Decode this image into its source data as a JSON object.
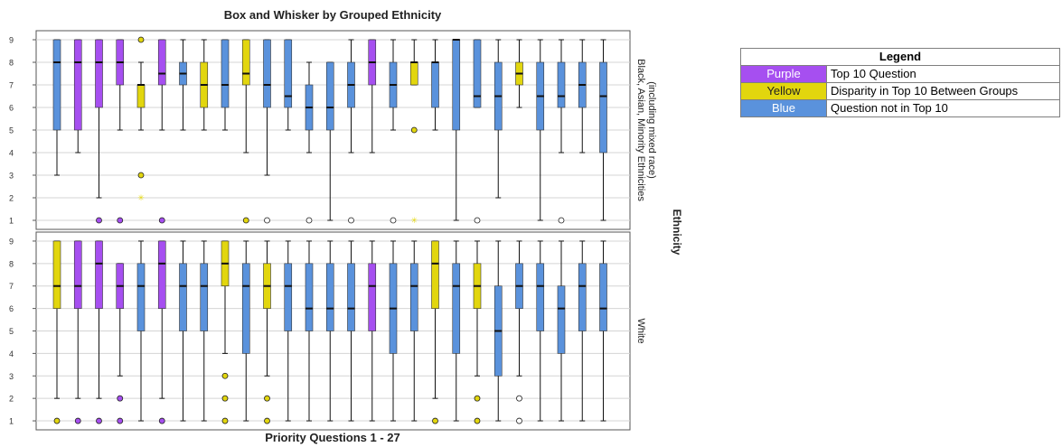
{
  "chart_data": {
    "type": "box",
    "title": "Box and Whisker by Grouped Ethnicity",
    "xlabel": "Priority Questions 1 - 27",
    "facet_label": "Ethnicity",
    "ylim": [
      0.6,
      9.4
    ],
    "yticks": [
      1,
      2,
      3,
      4,
      5,
      6,
      7,
      8,
      9
    ],
    "grid": true,
    "colors": {
      "purple": "#a64ff0",
      "yellow": "#e2d60e",
      "blue": "#5a92dc"
    },
    "panels": [
      {
        "group": "Black, Asian, Minority Ethnicities (including mixed race)",
        "group_lines": [
          "Black, Asian, Minority Ethnicities",
          "(including mixed race)"
        ],
        "boxes": [
          {
            "q": 1,
            "color": "blue",
            "min": 3,
            "q1": 5,
            "median": 8,
            "q3": 9,
            "max": 9,
            "outliers": []
          },
          {
            "q": 2,
            "color": "purple",
            "min": 4,
            "q1": 5,
            "median": 8,
            "q3": 9,
            "max": 9,
            "outliers": []
          },
          {
            "q": 3,
            "color": "purple",
            "min": 2,
            "q1": 6,
            "median": 8,
            "q3": 9,
            "max": 9,
            "outliers": [
              1
            ]
          },
          {
            "q": 4,
            "color": "purple",
            "min": 5,
            "q1": 7,
            "median": 8,
            "q3": 9,
            "max": 9,
            "outliers": [
              1
            ]
          },
          {
            "q": 5,
            "color": "yellow",
            "min": 5,
            "q1": 6,
            "median": 7,
            "q3": 7,
            "max": 8,
            "outliers": [
              9,
              3
            ],
            "extremes": [
              2
            ]
          },
          {
            "q": 6,
            "color": "purple",
            "min": 5,
            "q1": 7,
            "median": 7.5,
            "q3": 9,
            "max": 9,
            "outliers": [
              1
            ]
          },
          {
            "q": 7,
            "color": "blue",
            "min": 5,
            "q1": 7,
            "median": 7.5,
            "q3": 8,
            "max": 9,
            "outliers": []
          },
          {
            "q": 8,
            "color": "yellow",
            "min": 5,
            "q1": 6,
            "median": 7,
            "q3": 8,
            "max": 9,
            "outliers": []
          },
          {
            "q": 9,
            "color": "blue",
            "min": 5,
            "q1": 6,
            "median": 7,
            "q3": 9,
            "max": 9,
            "outliers": []
          },
          {
            "q": 10,
            "color": "yellow",
            "min": 4,
            "q1": 7,
            "median": 7.5,
            "q3": 9,
            "max": 9,
            "outliers": [
              1
            ]
          },
          {
            "q": 11,
            "color": "blue",
            "min": 3,
            "q1": 6,
            "median": 7,
            "q3": 9,
            "max": 9,
            "outliers": [
              1
            ]
          },
          {
            "q": 12,
            "color": "blue",
            "min": 5,
            "q1": 6,
            "median": 6.5,
            "q3": 9,
            "max": 9,
            "outliers": []
          },
          {
            "q": 13,
            "color": "blue",
            "min": 4,
            "q1": 5,
            "median": 6,
            "q3": 7,
            "max": 8,
            "outliers": [
              1
            ]
          },
          {
            "q": 14,
            "color": "blue",
            "min": 1,
            "q1": 5,
            "median": 6,
            "q3": 8,
            "max": 8,
            "outliers": []
          },
          {
            "q": 15,
            "color": "blue",
            "min": 4,
            "q1": 6,
            "median": 7,
            "q3": 8,
            "max": 9,
            "outliers": [
              1
            ]
          },
          {
            "q": 16,
            "color": "purple",
            "min": 4,
            "q1": 7,
            "median": 8,
            "q3": 9,
            "max": 9,
            "outliers": []
          },
          {
            "q": 17,
            "color": "blue",
            "min": 5,
            "q1": 6,
            "median": 7,
            "q3": 8,
            "max": 9,
            "outliers": [
              1
            ]
          },
          {
            "q": 18,
            "color": "yellow",
            "min": 7,
            "q1": 7,
            "median": 8,
            "q3": 8,
            "max": 9,
            "outliers": [
              5
            ],
            "extremes": [
              1
            ]
          },
          {
            "q": 19,
            "color": "blue",
            "min": 5,
            "q1": 6,
            "median": 8,
            "q3": 8,
            "max": 9,
            "outliers": []
          },
          {
            "q": 20,
            "color": "blue",
            "min": 1,
            "q1": 5,
            "median": 9,
            "q3": 9,
            "max": 9,
            "outliers": []
          },
          {
            "q": 21,
            "color": "blue",
            "min": 6,
            "q1": 6,
            "median": 6.5,
            "q3": 9,
            "max": 9,
            "outliers": [
              1
            ]
          },
          {
            "q": 22,
            "color": "blue",
            "min": 2,
            "q1": 5,
            "median": 6.5,
            "q3": 8,
            "max": 9,
            "outliers": []
          },
          {
            "q": 23,
            "color": "yellow",
            "min": 6,
            "q1": 7,
            "median": 7.5,
            "q3": 8,
            "max": 9,
            "outliers": []
          },
          {
            "q": 24,
            "color": "blue",
            "min": 1,
            "q1": 5,
            "median": 6.5,
            "q3": 8,
            "max": 9,
            "outliers": []
          },
          {
            "q": 25,
            "color": "blue",
            "min": 4,
            "q1": 6,
            "median": 6.5,
            "q3": 8,
            "max": 9,
            "outliers": [
              1
            ]
          },
          {
            "q": 26,
            "color": "blue",
            "min": 4,
            "q1": 6,
            "median": 7,
            "q3": 8,
            "max": 9,
            "outliers": []
          },
          {
            "q": 27,
            "color": "blue",
            "min": 1,
            "q1": 4,
            "median": 6.5,
            "q3": 8,
            "max": 9,
            "outliers": []
          }
        ]
      },
      {
        "group": "White",
        "group_lines": [
          "White"
        ],
        "boxes": [
          {
            "q": 1,
            "color": "yellow",
            "min": 2,
            "q1": 6,
            "median": 7,
            "q3": 9,
            "max": 9,
            "outliers": [
              1
            ]
          },
          {
            "q": 2,
            "color": "purple",
            "min": 2,
            "q1": 6,
            "median": 7,
            "q3": 9,
            "max": 9,
            "outliers": [
              1
            ]
          },
          {
            "q": 3,
            "color": "purple",
            "min": 2,
            "q1": 6,
            "median": 8,
            "q3": 9,
            "max": 9,
            "outliers": [
              1
            ]
          },
          {
            "q": 4,
            "color": "purple",
            "min": 3,
            "q1": 6,
            "median": 7,
            "q3": 8,
            "max": 8,
            "outliers": [
              2,
              1
            ]
          },
          {
            "q": 5,
            "color": "blue",
            "min": 1,
            "q1": 5,
            "median": 7,
            "q3": 8,
            "max": 9,
            "outliers": []
          },
          {
            "q": 6,
            "color": "purple",
            "min": 2,
            "q1": 6,
            "median": 8,
            "q3": 9,
            "max": 9,
            "outliers": [
              1
            ]
          },
          {
            "q": 7,
            "color": "blue",
            "min": 1,
            "q1": 5,
            "median": 7,
            "q3": 8,
            "max": 9,
            "outliers": []
          },
          {
            "q": 8,
            "color": "blue",
            "min": 1,
            "q1": 5,
            "median": 7,
            "q3": 8,
            "max": 9,
            "outliers": []
          },
          {
            "q": 9,
            "color": "yellow",
            "min": 4,
            "q1": 7,
            "median": 8,
            "q3": 9,
            "max": 9,
            "outliers": [
              3,
              2,
              1
            ]
          },
          {
            "q": 10,
            "color": "blue",
            "min": 1,
            "q1": 4,
            "median": 7,
            "q3": 8,
            "max": 9,
            "outliers": []
          },
          {
            "q": 11,
            "color": "yellow",
            "min": 3,
            "q1": 6,
            "median": 7,
            "q3": 8,
            "max": 9,
            "outliers": [
              2,
              1
            ]
          },
          {
            "q": 12,
            "color": "blue",
            "min": 1,
            "q1": 5,
            "median": 7,
            "q3": 8,
            "max": 9,
            "outliers": []
          },
          {
            "q": 13,
            "color": "blue",
            "min": 1,
            "q1": 5,
            "median": 6,
            "q3": 8,
            "max": 9,
            "outliers": []
          },
          {
            "q": 14,
            "color": "blue",
            "min": 1,
            "q1": 5,
            "median": 6,
            "q3": 8,
            "max": 9,
            "outliers": []
          },
          {
            "q": 15,
            "color": "blue",
            "min": 1,
            "q1": 5,
            "median": 6,
            "q3": 8,
            "max": 9,
            "outliers": []
          },
          {
            "q": 16,
            "color": "purple",
            "min": 1,
            "q1": 5,
            "median": 7,
            "q3": 8,
            "max": 9,
            "outliers": []
          },
          {
            "q": 17,
            "color": "blue",
            "min": 1,
            "q1": 4,
            "median": 6,
            "q3": 8,
            "max": 9,
            "outliers": []
          },
          {
            "q": 18,
            "color": "blue",
            "min": 1,
            "q1": 5,
            "median": 7,
            "q3": 8,
            "max": 9,
            "outliers": []
          },
          {
            "q": 19,
            "color": "yellow",
            "min": 2,
            "q1": 6,
            "median": 8,
            "q3": 9,
            "max": 9,
            "outliers": [
              1
            ]
          },
          {
            "q": 20,
            "color": "blue",
            "min": 1,
            "q1": 4,
            "median": 7,
            "q3": 8,
            "max": 9,
            "outliers": []
          },
          {
            "q": 21,
            "color": "yellow",
            "min": 3,
            "q1": 6,
            "median": 7,
            "q3": 8,
            "max": 9,
            "outliers": [
              2,
              1
            ]
          },
          {
            "q": 22,
            "color": "blue",
            "min": 1,
            "q1": 3,
            "median": 5,
            "q3": 7,
            "max": 9,
            "outliers": []
          },
          {
            "q": 23,
            "color": "blue",
            "min": 3,
            "q1": 6,
            "median": 7,
            "q3": 8,
            "max": 9,
            "outliers": [
              2,
              1
            ]
          },
          {
            "q": 24,
            "color": "blue",
            "min": 1,
            "q1": 5,
            "median": 7,
            "q3": 8,
            "max": 9,
            "outliers": []
          },
          {
            "q": 25,
            "color": "blue",
            "min": 1,
            "q1": 4,
            "median": 6,
            "q3": 7,
            "max": 9,
            "outliers": []
          },
          {
            "q": 26,
            "color": "blue",
            "min": 1,
            "q1": 5,
            "median": 7,
            "q3": 8,
            "max": 9,
            "outliers": []
          },
          {
            "q": 27,
            "color": "blue",
            "min": 1,
            "q1": 5,
            "median": 6,
            "q3": 8,
            "max": 9,
            "outliers": []
          }
        ]
      }
    ]
  },
  "legend": {
    "title": "Legend",
    "items": [
      {
        "swatch": "Purple",
        "color": "#a64ff0",
        "text_color": "#ffffff",
        "label": "Top 10 Question"
      },
      {
        "swatch": "Yellow",
        "color": "#e2d60e",
        "text_color": "#222222",
        "label": "Disparity in Top 10 Between Groups"
      },
      {
        "swatch": "Blue",
        "color": "#5a92dc",
        "text_color": "#ffffff",
        "label": "Question not in Top 10"
      }
    ]
  }
}
